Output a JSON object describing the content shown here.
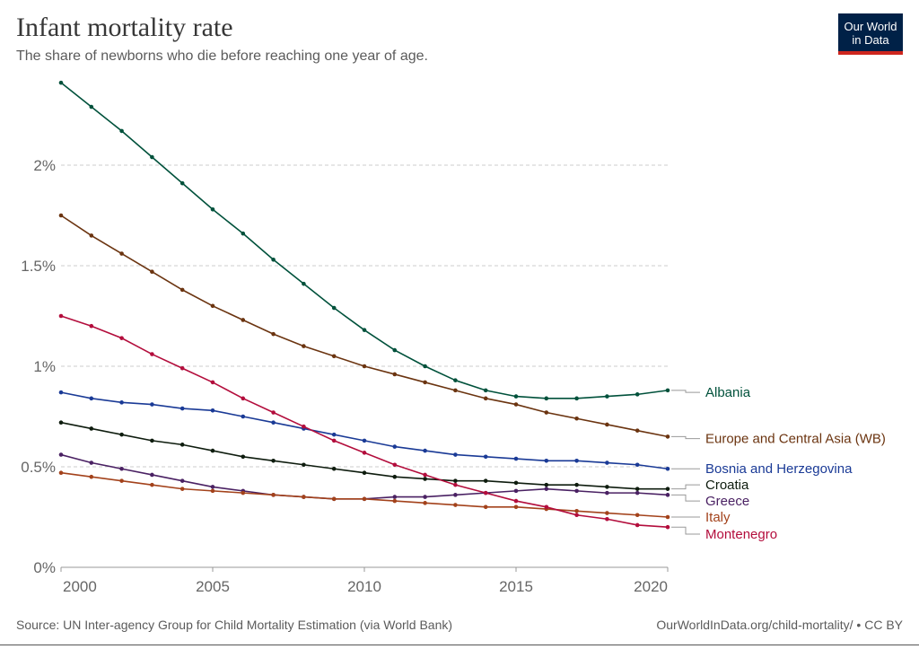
{
  "title": "Infant mortality rate",
  "subtitle": "The share of newborns who die before reaching one year of age.",
  "logo": {
    "line1": "Our World",
    "line2": "in Data",
    "bg_color": "#002147",
    "accent_color": "#ce261e"
  },
  "footer": {
    "source": "Source: UN Inter-agency Group for Child Mortality Estimation (via World Bank)",
    "url": "OurWorldInData.org/child-mortality/ • CC BY"
  },
  "chart_data": {
    "type": "line",
    "title": "Infant mortality rate",
    "subtitle": "The share of newborns who die before reaching one year of age.",
    "xlim": [
      2000,
      2020
    ],
    "ylim": [
      0,
      2.5
    ],
    "x_ticks": [
      2000,
      2005,
      2010,
      2015,
      2020
    ],
    "y_ticks": [
      0,
      0.5,
      1,
      1.5,
      2
    ],
    "y_tick_labels": [
      "0%",
      "0.5%",
      "1%",
      "1.5%",
      "2%"
    ],
    "grid": "horizontal dashed",
    "legend": "right-side labels at line ends",
    "x": [
      2000,
      2001,
      2002,
      2003,
      2004,
      2005,
      2006,
      2007,
      2008,
      2009,
      2010,
      2011,
      2012,
      2013,
      2014,
      2015,
      2016,
      2017,
      2018,
      2019,
      2020
    ],
    "series": [
      {
        "name": "Albania",
        "color": "#00513b",
        "label_y": 0.87,
        "values": [
          2.41,
          2.29,
          2.17,
          2.04,
          1.91,
          1.78,
          1.66,
          1.53,
          1.41,
          1.29,
          1.18,
          1.08,
          1.0,
          0.93,
          0.88,
          0.85,
          0.84,
          0.84,
          0.85,
          0.86,
          0.88
        ]
      },
      {
        "name": "Europe and Central Asia (WB)",
        "color": "#6b3410",
        "label_y": 0.64,
        "values": [
          1.75,
          1.65,
          1.56,
          1.47,
          1.38,
          1.3,
          1.23,
          1.16,
          1.1,
          1.05,
          1.0,
          0.96,
          0.92,
          0.88,
          0.84,
          0.81,
          0.77,
          0.74,
          0.71,
          0.68,
          0.65
        ]
      },
      {
        "name": "Bosnia and Herzegovina",
        "color": "#1a3a96",
        "label_y": 0.49,
        "values": [
          0.87,
          0.84,
          0.82,
          0.81,
          0.79,
          0.78,
          0.75,
          0.72,
          0.69,
          0.66,
          0.63,
          0.6,
          0.58,
          0.56,
          0.55,
          0.54,
          0.53,
          0.53,
          0.52,
          0.51,
          0.49
        ]
      },
      {
        "name": "Croatia",
        "color": "#0e1c0e",
        "label_y": 0.41,
        "values": [
          0.72,
          0.69,
          0.66,
          0.63,
          0.61,
          0.58,
          0.55,
          0.53,
          0.51,
          0.49,
          0.47,
          0.45,
          0.44,
          0.43,
          0.43,
          0.42,
          0.41,
          0.41,
          0.4,
          0.39,
          0.39
        ]
      },
      {
        "name": "Greece",
        "color": "#4a2163",
        "label_y": 0.33,
        "values": [
          0.56,
          0.52,
          0.49,
          0.46,
          0.43,
          0.4,
          0.38,
          0.36,
          0.35,
          0.34,
          0.34,
          0.35,
          0.35,
          0.36,
          0.37,
          0.38,
          0.39,
          0.38,
          0.37,
          0.37,
          0.36
        ]
      },
      {
        "name": "Italy",
        "color": "#a3421b",
        "label_y": 0.25,
        "values": [
          0.47,
          0.45,
          0.43,
          0.41,
          0.39,
          0.38,
          0.37,
          0.36,
          0.35,
          0.34,
          0.34,
          0.33,
          0.32,
          0.31,
          0.3,
          0.3,
          0.29,
          0.28,
          0.27,
          0.26,
          0.25
        ]
      },
      {
        "name": "Montenegro",
        "color": "#b30d3c",
        "label_y": 0.165,
        "values": [
          1.25,
          1.2,
          1.14,
          1.06,
          0.99,
          0.92,
          0.84,
          0.77,
          0.7,
          0.63,
          0.57,
          0.51,
          0.46,
          0.41,
          0.37,
          0.33,
          0.3,
          0.26,
          0.24,
          0.21,
          0.2
        ]
      }
    ]
  }
}
